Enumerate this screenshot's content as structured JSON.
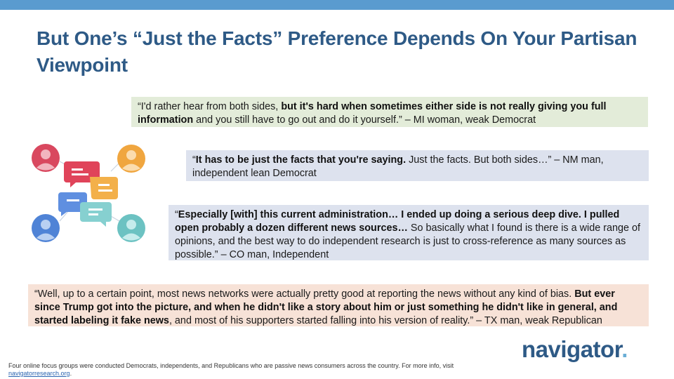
{
  "header": {
    "title": "But One’s “Just the Facts” Preference Depends On Your Partisan Viewpoint"
  },
  "quotes": [
    {
      "open": "“I'd rather hear from both sides, ",
      "bold": "but it's hard when sometimes either side is not really giving you full information",
      "rest": " and you still have to go out and do it yourself.” – MI woman, weak Democrat"
    },
    {
      "open": "“",
      "bold": "It has to be just the facts that you're saying.",
      "rest": " Just the facts. But both sides…” – NM man, independent lean Democrat"
    },
    {
      "open": "“",
      "bold": "Especially [with] this current administration… I ended up doing a serious deep dive. I pulled open probably a dozen different news sources…",
      "rest": " So basically what I found is there is a wide range of opinions, and the best way to do independent research is just to cross-reference as many sources as possible.” – CO man, Independent"
    },
    {
      "open": "“Well, up to a certain point, most news networks were actually pretty good at reporting the news without any kind of bias. ",
      "bold": "But ever since Trump got into the picture, and when he didn't like a story about him or just something he didn't like in general, and started labeling it fake news",
      "rest": ", and most of his supporters started falling into his version of reality.” – TX man, weak Republican"
    }
  ],
  "logo": {
    "name": "navigator",
    "dot": "."
  },
  "footnote": {
    "text": "Four online focus groups were conducted Democrats, independents, and Republicans who are passive news consumers across the country. For more info, visit ",
    "link": "navigatorresearch.org",
    "end": "."
  },
  "colors": {
    "accent_bar": "#5a9bcf",
    "title": "#2e5a86",
    "quote_green": "#e3ecd9",
    "quote_blue": "#dde2ee",
    "quote_peach": "#f7e2d7"
  },
  "illustration": {
    "icons": [
      "avatar-red-icon",
      "avatar-orange-icon",
      "avatar-blue-icon",
      "avatar-teal-icon",
      "chat-bubbles-icon"
    ]
  }
}
